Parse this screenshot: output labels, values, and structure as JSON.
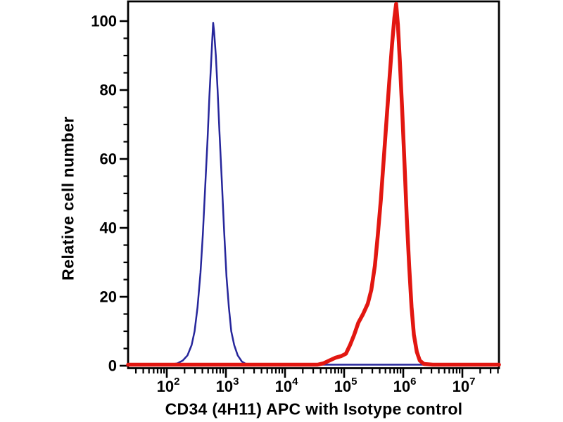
{
  "title": "CD34 (4H11) APC with Isotype control",
  "ylabel": "Relative cell number",
  "colors": {
    "background": "#ffffff",
    "axis": "#000000",
    "isotype_blue": "#26269b",
    "cd34_red": "#e21711"
  },
  "chart_data": {
    "type": "line",
    "subtype": "flow-cytometry-histogram",
    "title": "",
    "xlabel": "CD34 (4H11) APC with Isotype control",
    "ylabel": "Relative cell number",
    "x_axis": {
      "scale": "log10",
      "min_log10": 1.345,
      "max_log10": 7.62,
      "decade_ticks": [
        2,
        3,
        4,
        5,
        6,
        7
      ],
      "tick_label_base": "10",
      "tick_labels": [
        "10^2",
        "10^3",
        "10^4",
        "10^5",
        "10^6",
        "10^7"
      ],
      "minor_ticks": "log multiples 2-9 per decade"
    },
    "y_axis": {
      "min": 0,
      "max": 106,
      "major_ticks": [
        0,
        20,
        40,
        60,
        80,
        100
      ],
      "tick_labels": [
        "0",
        "20",
        "40",
        "60",
        "80",
        "100"
      ],
      "minor_tick_step": 5,
      "grid": false
    },
    "legend": "none",
    "series": [
      {
        "name": "Isotype control",
        "color": "#26269b",
        "stroke_width": 2.5,
        "peak_x": 610,
        "peak_y": 99,
        "points_log10x_y": [
          [
            1.345,
            0.3
          ],
          [
            2.05,
            0.3
          ],
          [
            2.18,
            0.7
          ],
          [
            2.27,
            1.5
          ],
          [
            2.35,
            3
          ],
          [
            2.42,
            6
          ],
          [
            2.47,
            10
          ],
          [
            2.52,
            17
          ],
          [
            2.57,
            27
          ],
          [
            2.61,
            38
          ],
          [
            2.65,
            52
          ],
          [
            2.69,
            66
          ],
          [
            2.72,
            78
          ],
          [
            2.75,
            88
          ],
          [
            2.77,
            95
          ],
          [
            2.785,
            99.5
          ],
          [
            2.8,
            97
          ],
          [
            2.83,
            90
          ],
          [
            2.86,
            80
          ],
          [
            2.89,
            68
          ],
          [
            2.93,
            54
          ],
          [
            2.97,
            39
          ],
          [
            3.01,
            26
          ],
          [
            3.05,
            17
          ],
          [
            3.09,
            10
          ],
          [
            3.14,
            6
          ],
          [
            3.2,
            3
          ],
          [
            3.27,
            1.2
          ],
          [
            3.35,
            0.4
          ],
          [
            3.5,
            0.3
          ],
          [
            7.62,
            0.3
          ]
        ]
      },
      {
        "name": "CD34 (4H11) APC",
        "color": "#e21711",
        "stroke_width": 5.5,
        "peak_x": 760000,
        "peak_y": 105,
        "points_log10x_y": [
          [
            1.345,
            0.3
          ],
          [
            4.55,
            0.3
          ],
          [
            4.65,
            0.7
          ],
          [
            4.75,
            1.5
          ],
          [
            4.85,
            2.3
          ],
          [
            4.95,
            2.8
          ],
          [
            5.03,
            3.5
          ],
          [
            5.1,
            6
          ],
          [
            5.17,
            9
          ],
          [
            5.24,
            12.5
          ],
          [
            5.32,
            15
          ],
          [
            5.4,
            18
          ],
          [
            5.46,
            22
          ],
          [
            5.52,
            29
          ],
          [
            5.57,
            38
          ],
          [
            5.62,
            48
          ],
          [
            5.67,
            60
          ],
          [
            5.72,
            72
          ],
          [
            5.77,
            84
          ],
          [
            5.81,
            93
          ],
          [
            5.85,
            101
          ],
          [
            5.88,
            105
          ],
          [
            5.91,
            99
          ],
          [
            5.94,
            89
          ],
          [
            5.98,
            75
          ],
          [
            6.02,
            59
          ],
          [
            6.06,
            43
          ],
          [
            6.1,
            29
          ],
          [
            6.14,
            17
          ],
          [
            6.18,
            9
          ],
          [
            6.23,
            4
          ],
          [
            6.28,
            1.5
          ],
          [
            6.35,
            0.5
          ],
          [
            6.5,
            0.3
          ],
          [
            7.62,
            0.3
          ]
        ]
      }
    ]
  }
}
